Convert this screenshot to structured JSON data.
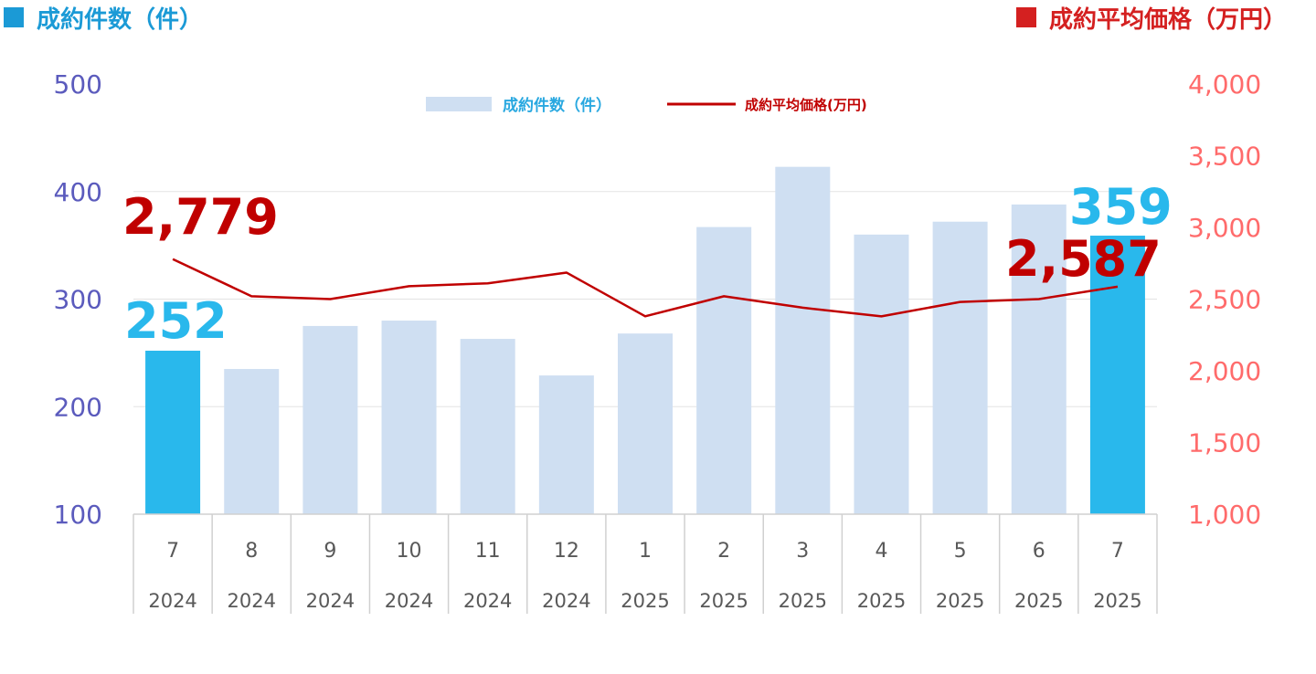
{
  "header": {
    "left_title": "成約件数（件）",
    "right_title": "成約平均価格（万円）"
  },
  "legend": {
    "bar_label": "成約件数（件）",
    "line_label": "成約平均価格(万円)"
  },
  "colors": {
    "bar_light": "#cfdff2",
    "bar_highlight": "#29b8ec",
    "line": "#c00000",
    "left_axis": "#5b5bbd",
    "right_axis": "#ff6b6b",
    "left_header": "#1b9ad6",
    "right_header": "#d42020",
    "callout_count": "#29b8ec",
    "callout_price": "#c00000"
  },
  "callouts": {
    "first_count": "252",
    "last_count": "359",
    "first_price": "2,779",
    "last_price": "2,587"
  },
  "chart_data": {
    "type": "bar",
    "categories": [
      "7",
      "8",
      "9",
      "10",
      "11",
      "12",
      "1",
      "2",
      "3",
      "4",
      "5",
      "6",
      "7"
    ],
    "years": [
      "2024",
      "2024",
      "2024",
      "2024",
      "2024",
      "2024",
      "2025",
      "2025",
      "2025",
      "2025",
      "2025",
      "2025",
      "2025"
    ],
    "series": [
      {
        "name": "成約件数（件）",
        "type": "bar",
        "axis": "left",
        "values": [
          252,
          235,
          275,
          280,
          263,
          229,
          268,
          367,
          423,
          360,
          372,
          388,
          359
        ],
        "highlight_indices": [
          0,
          12
        ]
      },
      {
        "name": "成約平均価格(万円)",
        "type": "line",
        "axis": "right",
        "values": [
          2779,
          2520,
          2500,
          2590,
          2610,
          2685,
          2380,
          2520,
          2440,
          2380,
          2480,
          2500,
          2587
        ]
      }
    ],
    "left_axis": {
      "ylim": [
        100,
        500
      ],
      "ticks": [
        "100",
        "200",
        "300",
        "400",
        "500"
      ]
    },
    "right_axis": {
      "ylim": [
        1000,
        4000
      ],
      "ticks": [
        "1,000",
        "1,500",
        "2,000",
        "2,500",
        "3,000",
        "3,500",
        "4,000"
      ]
    },
    "grid": true,
    "legend_position": "top-center"
  }
}
